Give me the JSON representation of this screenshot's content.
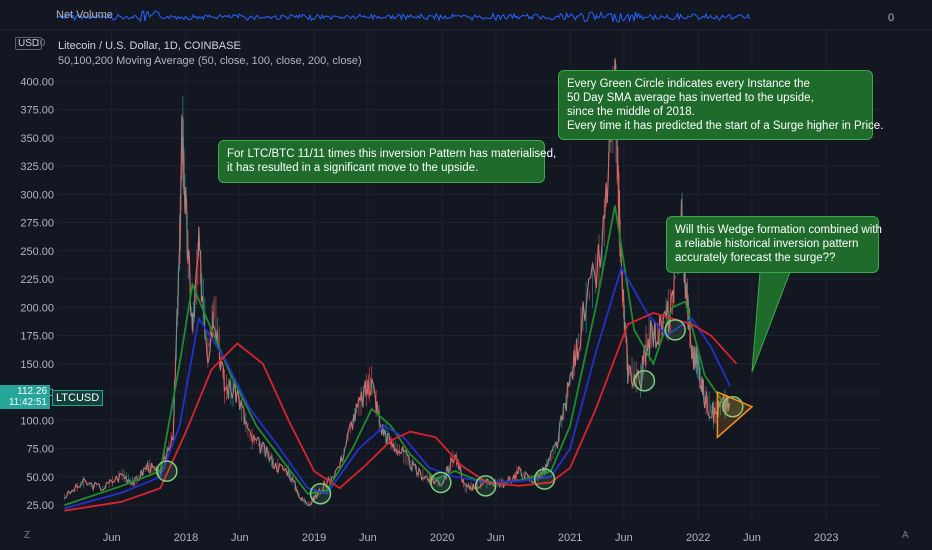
{
  "chart_data": {
    "type": "line",
    "title": "Litecoin / U.S. Dollar, 1D, COINBASE",
    "indicator_label": "50,100,200 Moving Average (50, close, 100, close, 200, close)",
    "currency_badge": "USD",
    "currency_tick": "I0",
    "top_pane_label": "Net Volume",
    "top_pane_value": "0",
    "y_ticks": [
      400,
      375,
      350,
      325,
      300,
      275,
      250,
      225,
      200,
      175,
      150,
      125,
      100,
      75,
      50,
      25
    ],
    "y_tick_labels": [
      "400.00",
      "375.00",
      "350.00",
      "325.00",
      "300.00",
      "275.00",
      "250.00",
      "225.00",
      "200.00",
      "175.00",
      "150.00",
      "125.00",
      "100.00",
      "75.00",
      "50.00",
      "25.00"
    ],
    "ylim": [
      10,
      410
    ],
    "x_ticks": [
      2017.42,
      2018.0,
      2018.42,
      2019.0,
      2019.42,
      2020.0,
      2020.42,
      2021.0,
      2021.42,
      2022.0,
      2022.42,
      2023.0
    ],
    "x_tick_labels": [
      "Jun",
      "2018",
      "Jun",
      "2019",
      "Jun",
      "2020",
      "Jun",
      "2021",
      "Jun",
      "2022",
      "Jun",
      "2023"
    ],
    "xlim": [
      2017.0,
      2023.42
    ],
    "price_path": [
      [
        2017.05,
        32
      ],
      [
        2017.2,
        45
      ],
      [
        2017.35,
        40
      ],
      [
        2017.5,
        52
      ],
      [
        2017.6,
        45
      ],
      [
        2017.7,
        60
      ],
      [
        2017.8,
        52
      ],
      [
        2017.9,
        90
      ],
      [
        2017.95,
        250
      ],
      [
        2017.97,
        360
      ],
      [
        2018.0,
        280
      ],
      [
        2018.05,
        180
      ],
      [
        2018.1,
        250
      ],
      [
        2018.17,
        160
      ],
      [
        2018.22,
        200
      ],
      [
        2018.3,
        130
      ],
      [
        2018.4,
        125
      ],
      [
        2018.5,
        85
      ],
      [
        2018.6,
        75
      ],
      [
        2018.7,
        60
      ],
      [
        2018.8,
        55
      ],
      [
        2018.9,
        30
      ],
      [
        2018.97,
        26
      ],
      [
        2019.05,
        38
      ],
      [
        2019.2,
        60
      ],
      [
        2019.3,
        100
      ],
      [
        2019.4,
        125
      ],
      [
        2019.45,
        135
      ],
      [
        2019.52,
        95
      ],
      [
        2019.6,
        80
      ],
      [
        2019.7,
        70
      ],
      [
        2019.8,
        55
      ],
      [
        2019.9,
        48
      ],
      [
        2020.0,
        45
      ],
      [
        2020.1,
        70
      ],
      [
        2020.18,
        40
      ],
      [
        2020.25,
        42
      ],
      [
        2020.4,
        45
      ],
      [
        2020.5,
        44
      ],
      [
        2020.6,
        55
      ],
      [
        2020.7,
        47
      ],
      [
        2020.8,
        55
      ],
      [
        2020.9,
        80
      ],
      [
        2021.0,
        135
      ],
      [
        2021.1,
        190
      ],
      [
        2021.25,
        250
      ],
      [
        2021.35,
        400
      ],
      [
        2021.4,
        230
      ],
      [
        2021.45,
        145
      ],
      [
        2021.55,
        135
      ],
      [
        2021.6,
        170
      ],
      [
        2021.7,
        180
      ],
      [
        2021.8,
        200
      ],
      [
        2021.87,
        280
      ],
      [
        2021.9,
        225
      ],
      [
        2021.95,
        160
      ],
      [
        2022.0,
        150
      ],
      [
        2022.05,
        120
      ],
      [
        2022.12,
        105
      ],
      [
        2022.2,
        115
      ],
      [
        2022.25,
        112
      ]
    ],
    "series": [
      {
        "name": "50",
        "color": "#1e8c2e",
        "points": [
          [
            2017.05,
            25
          ],
          [
            2017.5,
            42
          ],
          [
            2017.8,
            55
          ],
          [
            2017.95,
            150
          ],
          [
            2018.05,
            220
          ],
          [
            2018.2,
            180
          ],
          [
            2018.35,
            140
          ],
          [
            2018.55,
            95
          ],
          [
            2018.75,
            65
          ],
          [
            2018.95,
            35
          ],
          [
            2019.1,
            38
          ],
          [
            2019.3,
            75
          ],
          [
            2019.45,
            110
          ],
          [
            2019.6,
            95
          ],
          [
            2019.75,
            70
          ],
          [
            2019.95,
            48
          ],
          [
            2020.1,
            55
          ],
          [
            2020.25,
            48
          ],
          [
            2020.45,
            44
          ],
          [
            2020.65,
            48
          ],
          [
            2020.85,
            55
          ],
          [
            2021.0,
            95
          ],
          [
            2021.2,
            200
          ],
          [
            2021.35,
            290
          ],
          [
            2021.5,
            180
          ],
          [
            2021.65,
            150
          ],
          [
            2021.8,
            200
          ],
          [
            2021.9,
            205
          ],
          [
            2022.05,
            140
          ],
          [
            2022.2,
            115
          ]
        ]
      },
      {
        "name": "100",
        "color": "#2430c8",
        "points": [
          [
            2017.05,
            22
          ],
          [
            2017.5,
            36
          ],
          [
            2017.8,
            50
          ],
          [
            2017.95,
            95
          ],
          [
            2018.1,
            190
          ],
          [
            2018.3,
            155
          ],
          [
            2018.5,
            110
          ],
          [
            2018.7,
            80
          ],
          [
            2018.95,
            40
          ],
          [
            2019.1,
            35
          ],
          [
            2019.35,
            75
          ],
          [
            2019.55,
            95
          ],
          [
            2019.7,
            85
          ],
          [
            2019.9,
            58
          ],
          [
            2020.1,
            50
          ],
          [
            2020.35,
            45
          ],
          [
            2020.6,
            46
          ],
          [
            2020.85,
            50
          ],
          [
            2021.0,
            75
          ],
          [
            2021.2,
            160
          ],
          [
            2021.4,
            235
          ],
          [
            2021.6,
            195
          ],
          [
            2021.75,
            175
          ],
          [
            2021.95,
            190
          ],
          [
            2022.1,
            165
          ],
          [
            2022.25,
            130
          ]
        ]
      },
      {
        "name": "200",
        "color": "#d9232e",
        "points": [
          [
            2017.05,
            20
          ],
          [
            2017.5,
            28
          ],
          [
            2017.8,
            40
          ],
          [
            2018.0,
            90
          ],
          [
            2018.2,
            145
          ],
          [
            2018.4,
            168
          ],
          [
            2018.6,
            150
          ],
          [
            2018.8,
            100
          ],
          [
            2019.0,
            55
          ],
          [
            2019.2,
            40
          ],
          [
            2019.4,
            60
          ],
          [
            2019.6,
            82
          ],
          [
            2019.75,
            90
          ],
          [
            2019.95,
            85
          ],
          [
            2020.15,
            60
          ],
          [
            2020.35,
            45
          ],
          [
            2020.6,
            42
          ],
          [
            2020.85,
            45
          ],
          [
            2021.0,
            58
          ],
          [
            2021.2,
            110
          ],
          [
            2021.45,
            185
          ],
          [
            2021.65,
            195
          ],
          [
            2021.8,
            190
          ],
          [
            2021.95,
            185
          ],
          [
            2022.1,
            175
          ],
          [
            2022.3,
            150
          ]
        ]
      }
    ],
    "annotations": [
      {
        "lines": [
          "For LTC/BTC 11/11 times this inversion Pattern has materialised,",
          "it has resulted in a significant move to the upside."
        ]
      },
      {
        "lines": [
          "Every Green Circle indicates every Instance the",
          "50 Day SMA average has inverted to the upside,",
          "since the middle of 2018.",
          "Every time it has predicted the start of a Surge higher in Price."
        ]
      },
      {
        "lines": [
          "Will this Wedge formation combined with",
          "a reliable historical inversion pattern",
          "accurately forecast the surge??"
        ]
      }
    ],
    "circles": [
      [
        2017.85,
        55
      ],
      [
        2019.05,
        35
      ],
      [
        2019.99,
        45
      ],
      [
        2020.34,
        42
      ],
      [
        2020.8,
        48
      ],
      [
        2021.58,
        135
      ],
      [
        2021.82,
        180
      ],
      [
        2022.27,
        112
      ]
    ],
    "wedge": [
      [
        2022.15,
        125
      ],
      [
        2022.15,
        85
      ],
      [
        2022.42,
        112
      ]
    ],
    "last_price": "112.26",
    "countdown": "11:42:51",
    "ticker": "LTCUSD",
    "corner_left": "Z",
    "corner_right": "A",
    "colors": {
      "background": "#131722",
      "grid": "#1f2330",
      "text": "#b2b5be",
      "note_bg": "#1e6b2b",
      "accent": "#26a69a",
      "wedge": "#f7931a"
    }
  }
}
